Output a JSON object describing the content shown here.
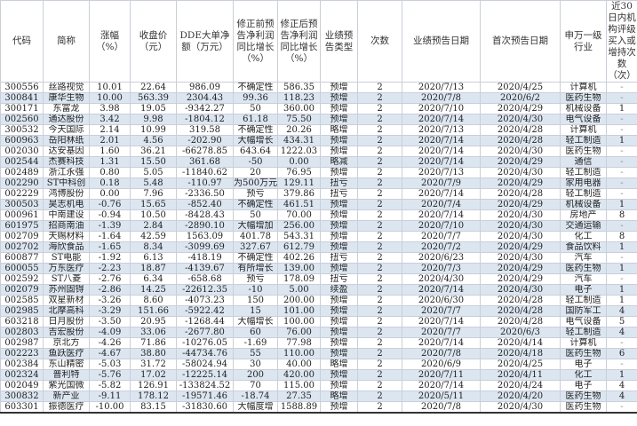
{
  "colors": {
    "row_alt": "#dce6f1",
    "border": "#c9cfd8"
  },
  "headers": [
    "代码",
    "简称",
    "涨幅（%）",
    "收盘价（元）",
    "DDE大单净额（万元）",
    "修正前预告净利润同比增长（%）",
    "修正后预告净利润同比增长（%）",
    "业绩预告类型",
    "次数",
    "业绩预告日期",
    "首次预告日期",
    "申万一级行业",
    "近30日内机构评级买入或增持次数（次）"
  ],
  "rows": [
    [
      "300556",
      "丝路视觉",
      "10.01",
      "22.64",
      "986.09",
      "不确定性",
      "586.35",
      "预增",
      "2",
      "2020/7/13",
      "2020/4/25",
      "计算机",
      "-"
    ],
    [
      "300841",
      "康华生物",
      "10.00",
      "563.39",
      "2304.43",
      "99.36",
      "118.23",
      "预增",
      "2",
      "2020/7/8",
      "2020/6/2",
      "医药生物",
      "-"
    ],
    [
      "300171",
      "东富龙",
      "3.98",
      "19.05",
      "-9342.27",
      "50",
      "360.00",
      "预增",
      "2",
      "2020/7/10",
      "2020/4/29",
      "机械设备",
      "1"
    ],
    [
      "002560",
      "通达股份",
      "3.42",
      "9.98",
      "-1804.12",
      "61.18",
      "75.50",
      "预增",
      "2",
      "2020/7/14",
      "2020/4/30",
      "电气设备",
      "-"
    ],
    [
      "300532",
      "今天国际",
      "2.14",
      "10.99",
      "319.58",
      "不确定性",
      "20.26",
      "略增",
      "2",
      "2020/7/13",
      "2020/4/28",
      "计算机",
      "-"
    ],
    [
      "600963",
      "岳阳林纸",
      "2.01",
      "4.56",
      "-202.90",
      "大幅增长",
      "434.31",
      "预增",
      "2",
      "2020/7/14",
      "2020/4/28",
      "轻工制造",
      "1"
    ],
    [
      "002030",
      "达安基因",
      "1.60",
      "36.21",
      "-66278.85",
      "643.64",
      "1222.03",
      "预增",
      "2",
      "2020/7/14",
      "2020/4/30",
      "医药生物",
      "-"
    ],
    [
      "002544",
      "杰赛科技",
      "1.31",
      "15.50",
      "361.68",
      "-50",
      "0.00",
      "略减",
      "2",
      "2020/7/14",
      "2020/4/29",
      "通信",
      "-"
    ],
    [
      "002489",
      "浙江永强",
      "0.80",
      "5.05",
      "-11840.62",
      "20",
      "76.95",
      "预增",
      "2",
      "2020/7/13",
      "2020/4/30",
      "轻工制造",
      "-"
    ],
    [
      "002290",
      "ST中科创",
      "0.18",
      "5.48",
      "-110.97",
      "为500万元",
      "129.11",
      "扭亏",
      "2",
      "2020/7/9",
      "2020/4/29",
      "家用电器",
      "-"
    ],
    [
      "002229",
      "鸿博股份",
      "0.00",
      "7.96",
      "-2336.50",
      "预亏",
      "379.86",
      "扭亏",
      "2",
      "2020/7/14",
      "2020/4/28",
      "轻工制造",
      "-"
    ],
    [
      "300503",
      "昊志机电",
      "-0.76",
      "15.65",
      "-852.40",
      "不确定性",
      "461.51",
      "预增",
      "2",
      "2020/7/4",
      "2020/4/29",
      "机械设备",
      "1"
    ],
    [
      "000961",
      "中南建设",
      "-0.94",
      "10.50",
      "-8428.43",
      "50",
      "70.00",
      "预增",
      "2",
      "2020/7/14",
      "2020/4/30",
      "房地产",
      "8"
    ],
    [
      "601975",
      "招商南油",
      "-1.39",
      "2.84",
      "-2890.10",
      "大幅增加",
      "256.00",
      "预增",
      "2",
      "2020/7/10",
      "2020/4/30",
      "交通运输",
      "-"
    ],
    [
      "002709",
      "天赐材料",
      "-1.64",
      "42.59",
      "1563.09",
      "401.78",
      "543.31",
      "预增",
      "2",
      "2020/7/7",
      "2020/4/30",
      "化工",
      "8"
    ],
    [
      "002702",
      "海欣食品",
      "-1.65",
      "8.34",
      "-3099.69",
      "327.67",
      "612.79",
      "预增",
      "2",
      "2020/7/2",
      "2020/4/29",
      "食品饮料",
      "1"
    ],
    [
      "600877",
      "ST电能",
      "-1.92",
      "6.13",
      "-418.19",
      "不确定性",
      "402.26",
      "扭亏",
      "2",
      "2020/6/23",
      "2020/4/30",
      "汽车",
      "-"
    ],
    [
      "600055",
      "万东医疗",
      "-2.23",
      "18.87",
      "-4139.67",
      "有所增长",
      "139.00",
      "预增",
      "2",
      "2020/7/3",
      "2020/4/29",
      "医药生物",
      "1"
    ],
    [
      "002592",
      "ST八菱",
      "-2.76",
      "6.34",
      "-658.68",
      "预亏",
      "178.09",
      "扭亏",
      "2",
      "2020/4/30",
      "2020/4/29",
      "汽车",
      "-"
    ],
    [
      "002079",
      "苏州固锝",
      "-2.86",
      "14.25",
      "-22612.35",
      "-10",
      "5.00",
      "续盈",
      "2",
      "2020/7/14",
      "2020/4/30",
      "电子",
      "1"
    ],
    [
      "002585",
      "双星新材",
      "-3.26",
      "8.60",
      "-4073.23",
      "150",
      "200.00",
      "预增",
      "2",
      "2020/6/30",
      "2020/4/28",
      "轻工制造",
      "1"
    ],
    [
      "002985",
      "北摩高科",
      "-3.29",
      "151.66",
      "-5922.42",
      "15",
      "101.00",
      "预增",
      "2",
      "2020/7/7",
      "2020/4/28",
      "国防军工",
      "4"
    ],
    [
      "603218",
      "日月股份",
      "-3.50",
      "20.95",
      "-1268.44",
      "大幅增长",
      "100.00",
      "预增",
      "2",
      "2020/7/14",
      "2020/4/28",
      "电气设备",
      "5"
    ],
    [
      "002803",
      "吉宏股份",
      "-4.09",
      "33.06",
      "-2677.80",
      "60",
      "76.00",
      "预增",
      "2",
      "2020/7/7",
      "2020/6/3",
      "轻工制造",
      "4"
    ],
    [
      "002987",
      "京北方",
      "-4.26",
      "71.86",
      "-10276.05",
      "-1.69",
      "77.98",
      "预增",
      "2",
      "2020/7/14",
      "2020/4/14",
      "计算机",
      "-"
    ],
    [
      "002223",
      "鱼跃医疗",
      "-4.67",
      "38.80",
      "-44734.76",
      "55",
      "110.00",
      "预增",
      "2",
      "2020/7/8",
      "2020/4/18",
      "医药生物",
      "6"
    ],
    [
      "002384",
      "东山精密",
      "-5.03",
      "31.72",
      "-58024.94",
      "30",
      "40.00",
      "略增",
      "2",
      "2020/6/9",
      "2020/4/25",
      "电子",
      "-"
    ],
    [
      "002324",
      "普利特",
      "-5.76",
      "17.02",
      "-12225.14",
      "200",
      "420.00",
      "预增",
      "2",
      "2020/7/11",
      "2020/4/11",
      "化工",
      "1"
    ],
    [
      "002049",
      "紫光国微",
      "-5.82",
      "126.91",
      "-133824.52",
      "70",
      "115.00",
      "预增",
      "2",
      "2020/7/14",
      "2020/4/24",
      "电子",
      "4"
    ],
    [
      "300832",
      "新产业",
      "-9.11",
      "178.12",
      "-19571.46",
      "-18.74",
      "27.35",
      "略增",
      "2",
      "2020/5/11",
      "2020/4/20",
      "医药生物",
      "4"
    ],
    [
      "603301",
      "振德医疗",
      "-10.00",
      "83.15",
      "-31830.60",
      "大幅度增",
      "1588.89",
      "预增",
      "2",
      "2020/7/8",
      "2020/4/30",
      "医药生物",
      "-"
    ]
  ]
}
